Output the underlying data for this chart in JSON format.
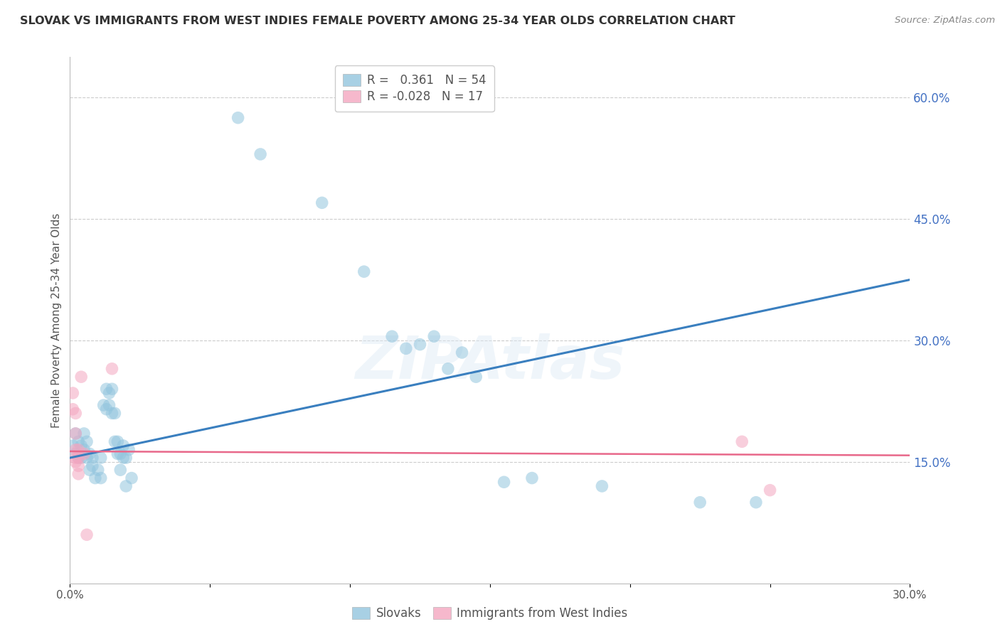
{
  "title": "SLOVAK VS IMMIGRANTS FROM WEST INDIES FEMALE POVERTY AMONG 25-34 YEAR OLDS CORRELATION CHART",
  "source": "Source: ZipAtlas.com",
  "ylabel": "Female Poverty Among 25-34 Year Olds",
  "xlim": [
    0.0,
    0.3
  ],
  "ylim": [
    0.0,
    0.65
  ],
  "xticks": [
    0.0,
    0.05,
    0.1,
    0.15,
    0.2,
    0.25,
    0.3
  ],
  "xticklabels": [
    "0.0%",
    "",
    "",
    "",
    "",
    "",
    "30.0%"
  ],
  "yticks_right": [
    0.15,
    0.3,
    0.45,
    0.6
  ],
  "ytick_labels_right": [
    "15.0%",
    "30.0%",
    "45.0%",
    "60.0%"
  ],
  "blue_color": "#92c5de",
  "pink_color": "#f4a6c0",
  "blue_line_color": "#3a7fbf",
  "pink_line_color": "#e8688a",
  "watermark": "ZIPAtlas",
  "legend_R_blue": "0.361",
  "legend_N_blue": "54",
  "legend_R_pink": "-0.028",
  "legend_N_pink": "17",
  "blue_scatter": [
    [
      0.001,
      0.17
    ],
    [
      0.002,
      0.16
    ],
    [
      0.002,
      0.185
    ],
    [
      0.003,
      0.155
    ],
    [
      0.003,
      0.175
    ],
    [
      0.004,
      0.17
    ],
    [
      0.004,
      0.155
    ],
    [
      0.005,
      0.185
    ],
    [
      0.005,
      0.165
    ],
    [
      0.006,
      0.175
    ],
    [
      0.006,
      0.155
    ],
    [
      0.007,
      0.16
    ],
    [
      0.007,
      0.14
    ],
    [
      0.008,
      0.155
    ],
    [
      0.008,
      0.145
    ],
    [
      0.009,
      0.13
    ],
    [
      0.01,
      0.14
    ],
    [
      0.011,
      0.155
    ],
    [
      0.011,
      0.13
    ],
    [
      0.012,
      0.22
    ],
    [
      0.013,
      0.24
    ],
    [
      0.013,
      0.215
    ],
    [
      0.014,
      0.235
    ],
    [
      0.014,
      0.22
    ],
    [
      0.015,
      0.24
    ],
    [
      0.015,
      0.21
    ],
    [
      0.016,
      0.21
    ],
    [
      0.016,
      0.175
    ],
    [
      0.017,
      0.175
    ],
    [
      0.017,
      0.16
    ],
    [
      0.018,
      0.16
    ],
    [
      0.018,
      0.14
    ],
    [
      0.019,
      0.155
    ],
    [
      0.019,
      0.17
    ],
    [
      0.02,
      0.12
    ],
    [
      0.02,
      0.155
    ],
    [
      0.021,
      0.165
    ],
    [
      0.022,
      0.13
    ],
    [
      0.06,
      0.575
    ],
    [
      0.068,
      0.53
    ],
    [
      0.09,
      0.47
    ],
    [
      0.105,
      0.385
    ],
    [
      0.115,
      0.305
    ],
    [
      0.12,
      0.29
    ],
    [
      0.125,
      0.295
    ],
    [
      0.13,
      0.305
    ],
    [
      0.135,
      0.265
    ],
    [
      0.14,
      0.285
    ],
    [
      0.145,
      0.255
    ],
    [
      0.155,
      0.125
    ],
    [
      0.165,
      0.13
    ],
    [
      0.19,
      0.12
    ],
    [
      0.225,
      0.1
    ],
    [
      0.245,
      0.1
    ]
  ],
  "pink_scatter": [
    [
      0.001,
      0.235
    ],
    [
      0.001,
      0.215
    ],
    [
      0.002,
      0.21
    ],
    [
      0.002,
      0.185
    ],
    [
      0.002,
      0.165
    ],
    [
      0.002,
      0.155
    ],
    [
      0.002,
      0.15
    ],
    [
      0.003,
      0.165
    ],
    [
      0.003,
      0.155
    ],
    [
      0.003,
      0.145
    ],
    [
      0.003,
      0.135
    ],
    [
      0.004,
      0.255
    ],
    [
      0.005,
      0.16
    ],
    [
      0.006,
      0.06
    ],
    [
      0.015,
      0.265
    ],
    [
      0.24,
      0.175
    ],
    [
      0.25,
      0.115
    ]
  ],
  "blue_trend_x": [
    0.0,
    0.3
  ],
  "blue_trend_y": [
    0.155,
    0.375
  ],
  "pink_trend_x": [
    0.0,
    0.3
  ],
  "pink_trend_y": [
    0.163,
    0.158
  ]
}
